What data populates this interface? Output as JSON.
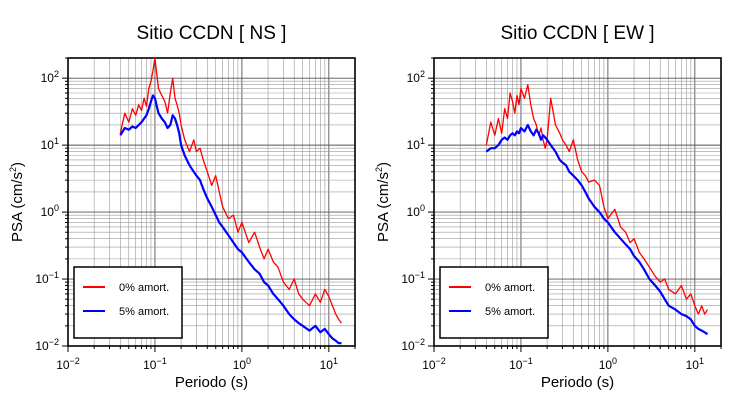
{
  "figure": {
    "charts": [
      {
        "title": "Sitio CCDN [ NS ]",
        "xlabel": "Periodo (s)",
        "ylabel_base": "PSA (cm/s",
        "ylabel_sup": "2",
        "ylabel_tail": ")"
      },
      {
        "title": "Sitio CCDN [ EW ]",
        "xlabel": "Periodo (s)",
        "ylabel_base": "PSA (cm/s",
        "ylabel_sup": "2",
        "ylabel_tail": ")"
      }
    ],
    "x_tick_labels": [
      {
        "base": "10",
        "exp": "−2"
      },
      {
        "base": "10",
        "exp": "−1"
      },
      {
        "base": "10",
        "exp": "0"
      },
      {
        "base": "10",
        "exp": "1"
      }
    ],
    "y_tick_labels": [
      {
        "base": "10",
        "exp": "−2"
      },
      {
        "base": "10",
        "exp": "−1"
      },
      {
        "base": "10",
        "exp": "0"
      },
      {
        "base": "10",
        "exp": "1"
      },
      {
        "base": "10",
        "exp": "2"
      }
    ],
    "legend": [
      "0% amort.",
      "5% amort."
    ]
  },
  "chart_data": [
    {
      "type": "line",
      "title": "Sitio CCDN [ NS ]",
      "xlabel": "Periodo (s)",
      "ylabel": "PSA (cm/s2)",
      "xscale": "log",
      "yscale": "log",
      "xlim": [
        0.01,
        20
      ],
      "ylim": [
        0.01,
        200
      ],
      "grid": true,
      "legend_position": "bottom-left",
      "series": [
        {
          "name": "0% amort.",
          "color": "#ff0000",
          "x": [
            0.04,
            0.045,
            0.05,
            0.055,
            0.06,
            0.065,
            0.07,
            0.075,
            0.08,
            0.085,
            0.09,
            0.095,
            0.1,
            0.11,
            0.12,
            0.13,
            0.14,
            0.15,
            0.16,
            0.17,
            0.18,
            0.19,
            0.2,
            0.22,
            0.25,
            0.28,
            0.3,
            0.33,
            0.36,
            0.4,
            0.45,
            0.5,
            0.55,
            0.6,
            0.7,
            0.8,
            0.9,
            1.0,
            1.2,
            1.4,
            1.6,
            1.8,
            2.0,
            2.3,
            2.6,
            3.0,
            3.5,
            4.0,
            4.5,
            5.0,
            6.0,
            7.0,
            8.0,
            9.0,
            10.0,
            11.0,
            12.0,
            13.0,
            14.0
          ],
          "y": [
            15,
            30,
            22,
            35,
            28,
            40,
            33,
            50,
            38,
            70,
            90,
            130,
            200,
            70,
            55,
            45,
            30,
            60,
            100,
            50,
            40,
            30,
            20,
            12,
            8,
            12,
            8,
            9,
            6,
            4,
            2.5,
            3.5,
            2,
            1.2,
            0.8,
            0.9,
            0.5,
            0.7,
            0.35,
            0.5,
            0.3,
            0.2,
            0.28,
            0.18,
            0.15,
            0.09,
            0.07,
            0.1,
            0.06,
            0.05,
            0.04,
            0.06,
            0.045,
            0.07,
            0.055,
            0.04,
            0.03,
            0.025,
            0.022
          ]
        },
        {
          "name": "5% amort.",
          "color": "#0000ff",
          "x": [
            0.04,
            0.045,
            0.05,
            0.055,
            0.06,
            0.065,
            0.07,
            0.075,
            0.08,
            0.085,
            0.09,
            0.095,
            0.1,
            0.11,
            0.12,
            0.13,
            0.14,
            0.15,
            0.16,
            0.17,
            0.18,
            0.19,
            0.2,
            0.22,
            0.25,
            0.28,
            0.3,
            0.33,
            0.36,
            0.4,
            0.45,
            0.5,
            0.55,
            0.6,
            0.7,
            0.8,
            0.9,
            1.0,
            1.2,
            1.4,
            1.6,
            1.8,
            2.0,
            2.3,
            2.6,
            3.0,
            3.5,
            4.0,
            4.5,
            5.0,
            6.0,
            7.0,
            8.0,
            9.0,
            10.0,
            11.0,
            12.0,
            13.0,
            14.0
          ],
          "y": [
            14,
            18,
            17,
            19,
            18,
            20,
            22,
            25,
            28,
            35,
            45,
            55,
            50,
            30,
            25,
            22,
            18,
            20,
            28,
            25,
            20,
            15,
            10,
            7,
            5,
            4,
            3.5,
            3,
            2.2,
            1.6,
            1.2,
            0.9,
            0.7,
            0.6,
            0.45,
            0.35,
            0.28,
            0.25,
            0.18,
            0.14,
            0.12,
            0.09,
            0.08,
            0.06,
            0.05,
            0.04,
            0.03,
            0.025,
            0.022,
            0.02,
            0.017,
            0.02,
            0.016,
            0.018,
            0.015,
            0.013,
            0.012,
            0.011,
            0.011
          ]
        }
      ]
    },
    {
      "type": "line",
      "title": "Sitio CCDN [ EW ]",
      "xlabel": "Periodo (s)",
      "ylabel": "PSA (cm/s2)",
      "xscale": "log",
      "yscale": "log",
      "xlim": [
        0.01,
        20
      ],
      "ylim": [
        0.01,
        200
      ],
      "grid": true,
      "legend_position": "bottom-left",
      "series": [
        {
          "name": "0% amort.",
          "color": "#ff0000",
          "x": [
            0.04,
            0.045,
            0.05,
            0.055,
            0.06,
            0.065,
            0.07,
            0.075,
            0.08,
            0.085,
            0.09,
            0.095,
            0.1,
            0.11,
            0.12,
            0.13,
            0.14,
            0.15,
            0.16,
            0.17,
            0.18,
            0.19,
            0.2,
            0.22,
            0.25,
            0.28,
            0.3,
            0.33,
            0.36,
            0.4,
            0.45,
            0.5,
            0.55,
            0.6,
            0.7,
            0.8,
            0.9,
            1.0,
            1.2,
            1.4,
            1.6,
            1.8,
            2.0,
            2.3,
            2.6,
            3.0,
            3.5,
            4.0,
            4.5,
            5.0,
            6.0,
            7.0,
            8.0,
            9.0,
            10.0,
            11.0,
            12.0,
            13.0,
            14.0
          ],
          "y": [
            10,
            22,
            14,
            25,
            15,
            35,
            25,
            60,
            45,
            30,
            55,
            40,
            70,
            50,
            80,
            40,
            25,
            20,
            14,
            18,
            12,
            9,
            12,
            50,
            20,
            15,
            12,
            10,
            8,
            12,
            6,
            4,
            3.5,
            2.8,
            3,
            2.5,
            1.2,
            0.8,
            1.1,
            0.6,
            0.5,
            0.35,
            0.4,
            0.25,
            0.2,
            0.15,
            0.11,
            0.09,
            0.1,
            0.07,
            0.06,
            0.08,
            0.05,
            0.06,
            0.04,
            0.03,
            0.04,
            0.03,
            0.035
          ]
        },
        {
          "name": "5% amort.",
          "color": "#0000ff",
          "x": [
            0.04,
            0.045,
            0.05,
            0.055,
            0.06,
            0.065,
            0.07,
            0.075,
            0.08,
            0.085,
            0.09,
            0.095,
            0.1,
            0.11,
            0.12,
            0.13,
            0.14,
            0.15,
            0.16,
            0.17,
            0.18,
            0.19,
            0.2,
            0.22,
            0.25,
            0.28,
            0.3,
            0.33,
            0.36,
            0.4,
            0.45,
            0.5,
            0.55,
            0.6,
            0.7,
            0.8,
            0.9,
            1.0,
            1.2,
            1.4,
            1.6,
            1.8,
            2.0,
            2.3,
            2.6,
            3.0,
            3.5,
            4.0,
            4.5,
            5.0,
            6.0,
            7.0,
            8.0,
            9.0,
            10.0,
            11.0,
            12.0,
            13.0,
            14.0
          ],
          "y": [
            8,
            9,
            9,
            10,
            12,
            13,
            12,
            14,
            15,
            14,
            16,
            15,
            18,
            16,
            20,
            16,
            14,
            17,
            15,
            12,
            14,
            13,
            12,
            10,
            8,
            6,
            5.5,
            5,
            4,
            3.5,
            3,
            2.5,
            2,
            1.6,
            1.2,
            1,
            0.8,
            0.7,
            0.5,
            0.4,
            0.33,
            0.28,
            0.22,
            0.18,
            0.14,
            0.1,
            0.08,
            0.065,
            0.05,
            0.04,
            0.035,
            0.03,
            0.028,
            0.025,
            0.02,
            0.018,
            0.017,
            0.016,
            0.015
          ]
        }
      ]
    }
  ]
}
